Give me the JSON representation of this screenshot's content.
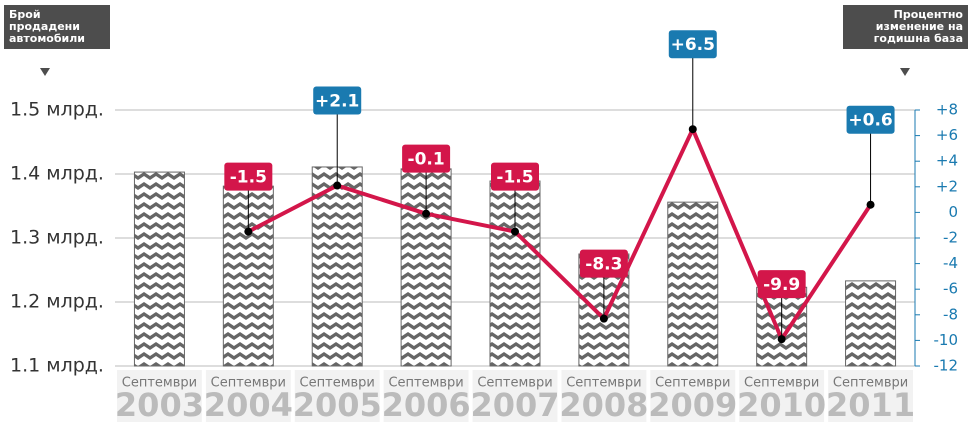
{
  "chart_data": {
    "type": "bar-line",
    "y_axis_title": "Брой продадени автомобили",
    "y2_axis_title": "Процентно изменение на годишна база",
    "month_label": "Септември",
    "categories": [
      "2003",
      "2004",
      "2005",
      "2006",
      "2007",
      "2008",
      "2009",
      "2010",
      "2011"
    ],
    "series": [
      {
        "type": "bar",
        "color": "#666666",
        "values": [
          1.403,
          1.381,
          1.411,
          1.408,
          1.389,
          1.275,
          1.356,
          1.223,
          1.233
        ]
      },
      {
        "type": "line",
        "axis": "y2",
        "color": "#d3164a",
        "positive_color": "#1a7ab0",
        "negative_color": "#d3164a",
        "values": [
          null,
          -1.5,
          2.1,
          -0.1,
          -1.5,
          -8.3,
          6.5,
          -9.9,
          0.6
        ],
        "value_labels": [
          null,
          "-1.5",
          "+2.1",
          "-0.1",
          "-1.5",
          "-8.3",
          "+6.5",
          "-9.9",
          "+0.6"
        ]
      }
    ],
    "ylim": [
      1.1,
      1.5
    ],
    "yticks": [
      {
        "value": 1.1,
        "label": "1.1 млрд."
      },
      {
        "value": 1.2,
        "label": "1.2 млрд."
      },
      {
        "value": 1.3,
        "label": "1.3 млрд."
      },
      {
        "value": 1.4,
        "label": "1.4 млрд."
      },
      {
        "value": 1.5,
        "label": "1.5 млрд."
      }
    ],
    "y2lim": [
      -12,
      8
    ],
    "y2ticks": [
      -12,
      -10,
      -8,
      -6,
      -4,
      -2,
      0,
      {
        "value": 2,
        "label": "+2"
      },
      {
        "value": 4,
        "label": "+4"
      },
      {
        "value": 6,
        "label": "+6"
      },
      {
        "value": 8,
        "label": "+8"
      }
    ],
    "grid": true
  }
}
